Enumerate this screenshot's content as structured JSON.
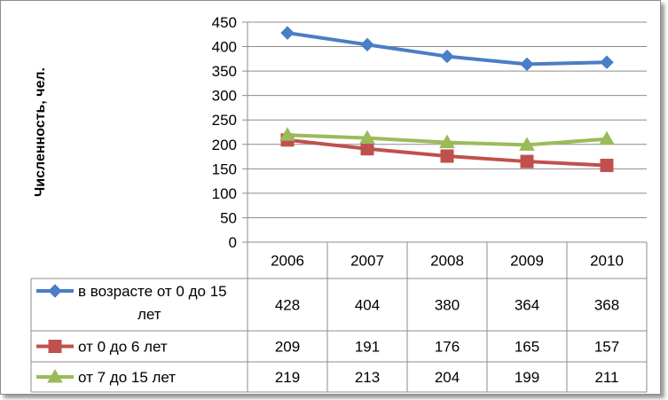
{
  "chart_data": {
    "type": "line",
    "categories": [
      "2006",
      "2007",
      "2008",
      "2009",
      "2010"
    ],
    "ylabel": "Численность, чел.",
    "ylim": [
      0,
      450
    ],
    "yticks": [
      "0",
      "50",
      "100",
      "150",
      "200",
      "250",
      "300",
      "350",
      "400",
      "450"
    ],
    "grid": true,
    "legend": "data-table-left",
    "series": [
      {
        "name": "в возрасте от 0 до 15 лет",
        "name_lines": [
          "в возрасте от 0 до 15",
          "лет"
        ],
        "values": [
          428,
          404,
          380,
          364,
          368
        ],
        "color": "#4a7ec6",
        "marker": "diamond"
      },
      {
        "name": "от 0 до 6 лет",
        "name_lines": [
          "от 0 до 6 лет"
        ],
        "values": [
          209,
          191,
          176,
          165,
          157
        ],
        "color": "#c0504d",
        "marker": "square"
      },
      {
        "name": "от 7 до 15 лет",
        "name_lines": [
          "от 7 до 15 лет"
        ],
        "values": [
          219,
          213,
          204,
          199,
          211
        ],
        "color": "#9bbb59",
        "marker": "triangle"
      }
    ]
  }
}
